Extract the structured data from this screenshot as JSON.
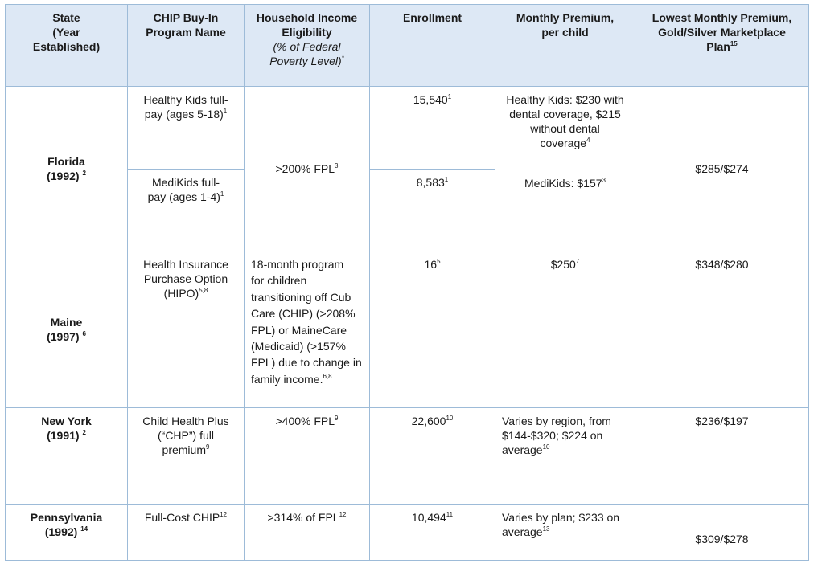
{
  "headers": {
    "state": [
      "State",
      "(Year",
      "Established)"
    ],
    "program": [
      "CHIP Buy-In",
      "Program Name"
    ],
    "income": [
      "Household Income",
      "Eligibility"
    ],
    "income_sub": [
      "(% of Federal",
      "Poverty Level)"
    ],
    "income_sub_sup": "*",
    "enrollment": "Enrollment",
    "premium": [
      "Monthly Premium,",
      "per child"
    ],
    "lowest": [
      "Lowest Monthly Premium,",
      "Gold/Silver Marketplace",
      "Plan"
    ],
    "lowest_sup": "15"
  },
  "florida": {
    "state": "Florida",
    "year": "(1992)",
    "year_sup": "2",
    "program1": [
      "Healthy Kids full-",
      "pay (ages 5-18)"
    ],
    "program1_sup": "1",
    "program2": [
      "MediKids full-",
      "pay (ages 1-4)"
    ],
    "program2_sup": "1",
    "income": ">200% FPL",
    "income_sup": "3",
    "enroll1": "15,540",
    "enroll1_sup": "1",
    "enroll2": "8,583",
    "enroll2_sup": "1",
    "premium1": [
      "Healthy Kids: $230 with",
      "dental coverage, $215",
      "without dental",
      "coverage"
    ],
    "premium1_sup": "4",
    "premium2": "MediKids: $157",
    "premium2_sup": "3",
    "lowest": "$285/$274"
  },
  "maine": {
    "state": "Maine",
    "year": "(1997)",
    "year_sup": "6",
    "program": [
      "Health Insurance",
      "Purchase Option",
      "(HIPO)"
    ],
    "program_sup": "5,8",
    "income": [
      "18-month program",
      "for children",
      "transitioning off Cub",
      "Care (CHIP) (>208%",
      "FPL) or MaineCare",
      "(Medicaid) (>157%",
      "FPL) due to change in",
      "family income."
    ],
    "income_sup": "6,8",
    "enroll": "16",
    "enroll_sup": "5",
    "premium": "$250",
    "premium_sup": "7",
    "lowest": "$348/$280"
  },
  "newyork": {
    "state": "New York",
    "year": "(1991)",
    "year_sup": "2",
    "program": [
      "Child Health Plus",
      "(“CHP”) full",
      "premium"
    ],
    "program_sup": "9",
    "income": ">400% FPL",
    "income_sup": "9",
    "enroll": "22,600",
    "enroll_sup": "10",
    "premium": [
      "Varies by region, from",
      "$144-$320; $224 on",
      "average"
    ],
    "premium_sup": "10",
    "lowest": "$236/$197"
  },
  "pennsylvania": {
    "state": "Pennsylvania",
    "year": "(1992)",
    "year_sup": "14",
    "program": "Full-Cost CHIP",
    "program_sup": "12",
    "income": ">314% of FPL",
    "income_sup": "12",
    "enroll": "10,494",
    "enroll_sup": "11",
    "premium": [
      "Varies by plan; $233 on",
      "average"
    ],
    "premium_sup": "13",
    "lowest": "$309/$278"
  }
}
